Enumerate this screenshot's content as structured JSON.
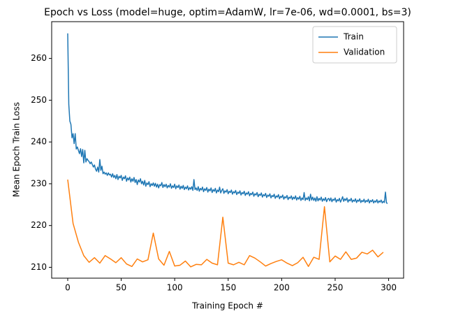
{
  "chart_data": {
    "type": "line",
    "title": "Epoch vs Loss (model=huge, optim=AdamW, lr=7e-06, wd=0.0001, bs=3)",
    "x_label": "Training Epoch #",
    "y_label": "Mean Epoch Train Loss",
    "xlim": [
      -15,
      314
    ],
    "ylim": [
      207.4,
      268.8
    ],
    "xticks": [
      0,
      50,
      100,
      150,
      200,
      250,
      300
    ],
    "yticks": [
      210,
      220,
      230,
      240,
      250,
      260
    ],
    "grid": false,
    "legend": "upper right",
    "series": [
      {
        "name": "Train",
        "color": "#1f77b4",
        "x": [
          0,
          1,
          2,
          3,
          4,
          5,
          6,
          7,
          8,
          9,
          10,
          11,
          12,
          13,
          14,
          15,
          16,
          17,
          18,
          19,
          20,
          21,
          22,
          23,
          24,
          25,
          26,
          27,
          28,
          29,
          30,
          31,
          32,
          33,
          34,
          35,
          36,
          37,
          38,
          39,
          40,
          41,
          42,
          43,
          44,
          45,
          46,
          47,
          48,
          49,
          50,
          51,
          52,
          53,
          54,
          55,
          56,
          57,
          58,
          59,
          60,
          61,
          62,
          63,
          64,
          65,
          66,
          67,
          68,
          69,
          70,
          71,
          72,
          73,
          74,
          75,
          76,
          77,
          78,
          79,
          80,
          81,
          82,
          83,
          84,
          85,
          86,
          87,
          88,
          89,
          90,
          91,
          92,
          93,
          94,
          95,
          96,
          97,
          98,
          99,
          100,
          101,
          102,
          103,
          104,
          105,
          106,
          107,
          108,
          109,
          110,
          111,
          112,
          113,
          114,
          115,
          116,
          117,
          118,
          119,
          120,
          121,
          122,
          123,
          124,
          125,
          126,
          127,
          128,
          129,
          130,
          131,
          132,
          133,
          134,
          135,
          136,
          137,
          138,
          139,
          140,
          141,
          142,
          143,
          144,
          145,
          146,
          147,
          148,
          149,
          150,
          151,
          152,
          153,
          154,
          155,
          156,
          157,
          158,
          159,
          160,
          161,
          162,
          163,
          164,
          165,
          166,
          167,
          168,
          169,
          170,
          171,
          172,
          173,
          174,
          175,
          176,
          177,
          178,
          179,
          180,
          181,
          182,
          183,
          184,
          185,
          186,
          187,
          188,
          189,
          190,
          191,
          192,
          193,
          194,
          195,
          196,
          197,
          198,
          199,
          200,
          201,
          202,
          203,
          204,
          205,
          206,
          207,
          208,
          209,
          210,
          211,
          212,
          213,
          214,
          215,
          216,
          217,
          218,
          219,
          220,
          221,
          222,
          223,
          224,
          225,
          226,
          227,
          228,
          229,
          230,
          231,
          232,
          233,
          234,
          235,
          236,
          237,
          238,
          239,
          240,
          241,
          242,
          243,
          244,
          245,
          246,
          247,
          248,
          249,
          250,
          251,
          252,
          253,
          254,
          255,
          256,
          257,
          258,
          259,
          260,
          261,
          262,
          263,
          264,
          265,
          266,
          267,
          268,
          269,
          270,
          271,
          272,
          273,
          274,
          275,
          276,
          277,
          278,
          279,
          280,
          281,
          282,
          283,
          284,
          285,
          286,
          287,
          288,
          289,
          290,
          291,
          292,
          293,
          294,
          295,
          296,
          297,
          298,
          299
        ],
        "values": [
          266,
          249,
          245,
          244.2,
          241,
          242,
          239.6,
          242,
          238.3,
          238.8,
          238,
          237.2,
          238.4,
          236.5,
          238.2,
          235,
          238,
          235.2,
          236,
          235.6,
          235.3,
          234.8,
          235.2,
          234.6,
          234,
          234.5,
          233.5,
          233,
          234,
          232.8,
          235.8,
          233.2,
          234.2,
          232.4,
          232.8,
          232.3,
          232.6,
          232,
          232.6,
          232.1,
          232.3,
          231.6,
          232.4,
          231.5,
          232,
          231.2,
          232.2,
          231,
          231.8,
          231.4,
          232,
          230.8,
          231.6,
          231.2,
          231.9,
          230.6,
          231.4,
          230.9,
          231.6,
          230.4,
          231.2,
          230.6,
          231.5,
          230.3,
          231,
          229.8,
          230.9,
          230.4,
          231.2,
          230,
          230.6,
          229.7,
          230.8,
          229.4,
          230.2,
          229.8,
          230.5,
          229.3,
          230,
          229.6,
          230.2,
          229.4,
          230.1,
          229.2,
          229.9,
          229,
          229.8,
          229.5,
          230.3,
          229.1,
          229.8,
          229.3,
          229.9,
          229,
          229.6,
          229.2,
          230,
          228.9,
          229.5,
          229.1,
          229.9,
          228.8,
          229.5,
          229.1,
          229.7,
          228.7,
          229.4,
          228.9,
          229.6,
          228.6,
          229.2,
          228.8,
          229.5,
          228.5,
          229.1,
          228.7,
          229.3,
          228.4,
          231,
          228.6,
          229,
          228.4,
          229.3,
          228.2,
          228.9,
          228.5,
          229.2,
          228.1,
          228.8,
          228.4,
          229.1,
          228,
          228.7,
          228.3,
          229,
          227.9,
          228.6,
          228.2,
          228.9,
          227.8,
          228.5,
          228.1,
          229.2,
          227.8,
          228.4,
          228.8,
          227.7,
          228.3,
          228,
          228.6,
          227.6,
          228.2,
          227.9,
          228.5,
          227.5,
          228.1,
          227.8,
          228.4,
          227.4,
          228,
          227.7,
          228.3,
          227.3,
          227.9,
          227.6,
          228.2,
          227.2,
          227.8,
          227.5,
          228.1,
          227.1,
          227.7,
          227.4,
          228,
          227,
          227.6,
          227.3,
          227.9,
          226.9,
          227.5,
          227.2,
          227.8,
          226.8,
          227.4,
          227.1,
          227.7,
          226.7,
          227.3,
          227,
          227.6,
          226.6,
          227.2,
          226.9,
          227.5,
          226.5,
          227.1,
          226.8,
          227.4,
          226.4,
          227,
          226.7,
          227.3,
          226.3,
          226.9,
          226.6,
          227.2,
          226.2,
          226.8,
          226.5,
          227.1,
          226.2,
          226.8,
          226.4,
          227.1,
          226.1,
          226.7,
          226.3,
          227,
          226,
          226.6,
          226.2,
          227.9,
          226,
          226.6,
          226.2,
          226.9,
          225.9,
          227.5,
          226.1,
          226.8,
          226,
          226.6,
          225.8,
          226.9,
          225.9,
          226.5,
          226.1,
          226.8,
          225.8,
          226.4,
          226,
          226.7,
          225.7,
          226.3,
          226.5,
          225.9,
          226.6,
          225.7,
          226.3,
          226,
          226.6,
          225.6,
          226.2,
          225.9,
          226.5,
          225.6,
          226.2,
          226.9,
          225.8,
          226.4,
          226,
          226.6,
          225.6,
          226.2,
          225.9,
          226.5,
          225.6,
          226.1,
          225.8,
          226.4,
          225.5,
          226.1,
          225.8,
          226.4,
          225.5,
          226,
          225.7,
          226.3,
          225.5,
          226,
          225.7,
          226.3,
          225.4,
          226,
          225.7,
          226.2,
          225.4,
          225.9,
          225.6,
          226.2,
          225.4,
          225.9,
          225.6,
          226.1,
          225.4,
          225.8,
          225.5,
          228,
          225.4,
          225.3
        ]
      },
      {
        "name": "Validation",
        "color": "#ff7f0e",
        "x": [
          0,
          5,
          10,
          15,
          20,
          25,
          30,
          35,
          40,
          45,
          50,
          55,
          60,
          65,
          70,
          75,
          80,
          85,
          90,
          95,
          100,
          105,
          110,
          115,
          120,
          125,
          130,
          135,
          140,
          145,
          150,
          155,
          160,
          165,
          170,
          175,
          180,
          185,
          190,
          195,
          200,
          205,
          210,
          215,
          220,
          225,
          230,
          235,
          240,
          245,
          250,
          255,
          260,
          265,
          270,
          275,
          280,
          285,
          290,
          295
        ],
        "values": [
          231,
          220.5,
          216,
          212.8,
          211.2,
          212.3,
          211,
          212.8,
          212,
          211.1,
          212.3,
          210.8,
          210.2,
          212,
          211.3,
          211.8,
          218.2,
          212,
          210.5,
          213.8,
          210.3,
          210.5,
          211.5,
          210.1,
          210.7,
          210.6,
          211.9,
          211,
          210.6,
          222,
          211,
          210.6,
          211.2,
          210.6,
          212.8,
          212.2,
          211.3,
          210.3,
          210.9,
          211.4,
          211.8,
          211,
          210.4,
          211.1,
          212.4,
          210.2,
          212.4,
          211.9,
          224.5,
          211.3,
          212.7,
          211.9,
          213.7,
          211.9,
          212.2,
          213.6,
          213.2,
          214.1,
          212.5,
          213.6
        ]
      }
    ]
  }
}
